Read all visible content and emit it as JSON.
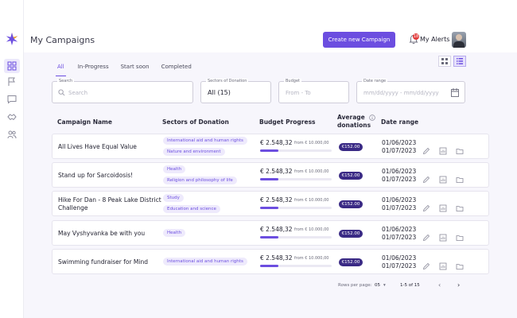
{
  "app": {
    "page_title": "My Campaigns",
    "brand_color": "#6c4ee0"
  },
  "header": {
    "create_button": "Create new Campaign",
    "alerts_label": "My Alerts",
    "alerts_count": "18"
  },
  "sidebar": {
    "items": [
      {
        "icon": "dashboard-grid-icon",
        "active": true
      },
      {
        "icon": "flag-icon",
        "active": false
      },
      {
        "icon": "message-icon",
        "active": false
      },
      {
        "icon": "handshake-icon",
        "active": false
      },
      {
        "icon": "team-icon",
        "active": false
      }
    ]
  },
  "tabs": [
    {
      "label": "All",
      "active": true
    },
    {
      "label": "In-Progress",
      "active": false
    },
    {
      "label": "Start soon",
      "active": false
    },
    {
      "label": "Completed",
      "active": false
    }
  ],
  "filters": {
    "search": {
      "label": "Search",
      "placeholder": "Search"
    },
    "sectors": {
      "label": "Sectors of Donation",
      "value": "All (15)"
    },
    "budget": {
      "label": "Budget",
      "placeholder": "From - To"
    },
    "date_range": {
      "label": "Date range",
      "placeholder": "mm/dd/yyyy - mm/dd/yyyy"
    }
  },
  "table": {
    "columns": {
      "name": "Campaign Name",
      "sectors": "Sectors of Donation",
      "budget": "Budget Progress",
      "average": "Average donations",
      "average_line1": "Average",
      "average_line2": "donations",
      "date": "Date range"
    },
    "rows": [
      {
        "name": "All Lives Have Equal Value",
        "name_line2": "",
        "sectors": [
          "International aid and human rights",
          "Nature and environment"
        ],
        "amount": "€ 2.548,32",
        "from": "from € 10.000,00",
        "progress": 0.2548,
        "average": "€152.00",
        "start": "01/06/2023",
        "end": "01/07/2023"
      },
      {
        "name": "Stand up for Sarcoidosis!",
        "name_line2": "",
        "sectors": [
          "Health",
          "Religion and philosophy of life"
        ],
        "amount": "€ 2.548,32",
        "from": "from € 10.000,00",
        "progress": 0.2548,
        "average": "€152.00",
        "start": "01/06/2023",
        "end": "01/07/2023"
      },
      {
        "name": "Hike For Dan - 8 Peak Lake District",
        "name_line2": "Challenge",
        "sectors": [
          "Study",
          "Education and science"
        ],
        "amount": "€ 2.548,32",
        "from": "from € 10.000,00",
        "progress": 0.2548,
        "average": "€152.00",
        "start": "01/06/2023",
        "end": "01/07/2023"
      },
      {
        "name": "May Vyshyvanka be with you",
        "name_line2": "",
        "sectors": [
          "Health"
        ],
        "amount": "€ 2.548,32",
        "from": "from € 10.000,00",
        "progress": 0.2548,
        "average": "€152.00",
        "start": "01/06/2023",
        "end": "01/07/2023"
      },
      {
        "name": "Swimming fundraiser for Mind",
        "name_line2": "",
        "sectors": [
          "International aid and human rights"
        ],
        "amount": "€ 2.548,32",
        "from": "from € 10.000,00",
        "progress": 0.2548,
        "average": "€152.00",
        "start": "01/06/2023",
        "end": "01/07/2023"
      }
    ]
  },
  "pagination": {
    "rows_per_page_label": "Rows per page:",
    "rows_per_page_value": "05",
    "range": "1-5 of 15"
  }
}
